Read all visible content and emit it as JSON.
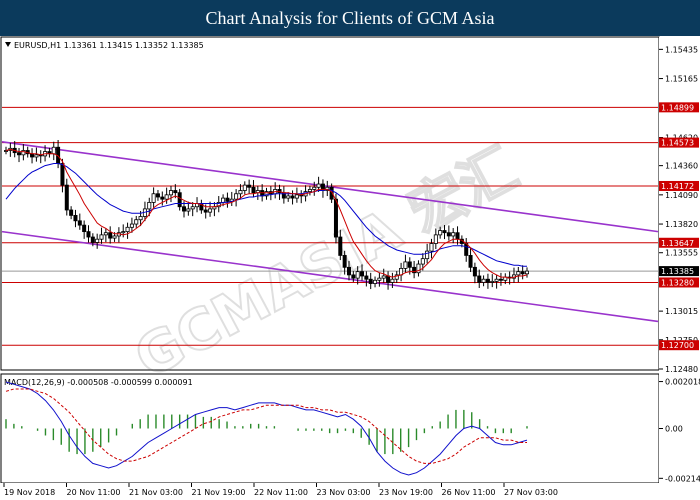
{
  "header": {
    "title": "Chart Analysis for Clients of GCM Asia"
  },
  "colors": {
    "banner": "#0b3a5c",
    "candle_up": "#000000",
    "candle_down": "#000000",
    "ma_fast": "#cc0000",
    "ma_slow": "#0000cc",
    "horizontal_level": "#cc0000",
    "channel": "#9933cc",
    "macd_hist_color": "#2a8a2a",
    "macd_line": "#1111cc",
    "signal_line": "#cc0000",
    "label_bg": "#cc0000",
    "current_price_bg": "#000000"
  },
  "chart_data": [
    {
      "type": "candlestick",
      "symbol_info": "EURUSD,H1  1.13361 1.13415 1.13352 1.13385",
      "ylim": [
        1.1248,
        1.1554
      ],
      "y_ticks": [
        "1.15435",
        "1.15165",
        "1.14620",
        "1.14360",
        "1.14090",
        "1.13820",
        "1.13555",
        "1.13015",
        "1.12750",
        "1.12480"
      ],
      "x_labels": [
        "19 Nov 2018",
        "20 Nov 11:00",
        "21 Nov 03:00",
        "21 Nov 19:00",
        "22 Nov 11:00",
        "23 Nov 03:00",
        "23 Nov 19:00",
        "26 Nov 11:00",
        "27 Nov 03:00"
      ],
      "horizontal_levels": [
        {
          "value": 1.14899,
          "label": "1.14899"
        },
        {
          "value": 1.14573,
          "label": "1.14573"
        },
        {
          "value": 1.14172,
          "label": "1.14172"
        },
        {
          "value": 1.13647,
          "label": "1.13647"
        },
        {
          "value": 1.1328,
          "label": "1.13280"
        },
        {
          "value": 1.127,
          "label": "1.12700"
        }
      ],
      "current_price": {
        "value": 1.13385,
        "label": "1.13385"
      },
      "channel_upper": [
        [
          0,
          1.1458
        ],
        [
          1,
          1.1375
        ]
      ],
      "channel_lower": [
        [
          0,
          1.1375
        ],
        [
          1,
          1.1292
        ]
      ],
      "close": [
        1.145,
        1.1452,
        1.1448,
        1.1446,
        1.145,
        1.1447,
        1.1444,
        1.1446,
        1.1445,
        1.1449,
        1.1447,
        1.1453,
        1.1438,
        1.1418,
        1.1395,
        1.139,
        1.1385,
        1.1381,
        1.1375,
        1.137,
        1.1365,
        1.1368,
        1.1372,
        1.1374,
        1.1369,
        1.1371,
        1.1374,
        1.1375,
        1.1379,
        1.1382,
        1.1386,
        1.1389,
        1.1396,
        1.1402,
        1.141,
        1.1407,
        1.1405,
        1.1409,
        1.1413,
        1.1411,
        1.1398,
        1.1394,
        1.1396,
        1.1398,
        1.1401,
        1.1395,
        1.1393,
        1.1396,
        1.1398,
        1.1402,
        1.1406,
        1.1403,
        1.1405,
        1.141,
        1.1413,
        1.1418,
        1.1416,
        1.1411,
        1.1413,
        1.1408,
        1.1412,
        1.141,
        1.1414,
        1.1411,
        1.1406,
        1.1408,
        1.1406,
        1.1409,
        1.1408,
        1.1412,
        1.1414,
        1.1416,
        1.1419,
        1.1413,
        1.1416,
        1.1405,
        1.137,
        1.1353,
        1.1342,
        1.1335,
        1.1332,
        1.1338,
        1.1334,
        1.1331,
        1.1327,
        1.133,
        1.1332,
        1.1334,
        1.1328,
        1.1331,
        1.1335,
        1.1341,
        1.1347,
        1.1342,
        1.1337,
        1.1345,
        1.135,
        1.1357,
        1.1364,
        1.1372,
        1.1376,
        1.1374,
        1.1371,
        1.1374,
        1.1368,
        1.1364,
        1.1353,
        1.1342,
        1.1334,
        1.1328,
        1.1331,
        1.1328,
        1.1329,
        1.1331,
        1.133,
        1.1333,
        1.1332,
        1.1335,
        1.1338,
        1.1336,
        1.13385
      ],
      "ma_fast": [
        1.145,
        1.1451,
        1.145,
        1.1449,
        1.1449,
        1.1448,
        1.1447,
        1.1447,
        1.1446,
        1.1447,
        1.1447,
        1.1447,
        1.1445,
        1.144,
        1.143,
        1.1423,
        1.1416,
        1.1409,
        1.1401,
        1.1395,
        1.1389,
        1.1383,
        1.138,
        1.1378,
        1.1375,
        1.1373,
        1.1373,
        1.1372,
        1.1373,
        1.1375,
        1.1378,
        1.1381,
        1.1386,
        1.1391,
        1.1397,
        1.14,
        1.1402,
        1.1404,
        1.1406,
        1.1408,
        1.1406,
        1.1404,
        1.1402,
        1.1401,
        1.1401,
        1.14,
        1.1398,
        1.1398,
        1.1398,
        1.1399,
        1.14,
        1.1401,
        1.1402,
        1.1404,
        1.1406,
        1.1409,
        1.141,
        1.141,
        1.1411,
        1.1411,
        1.1411,
        1.1411,
        1.1412,
        1.1412,
        1.1411,
        1.1411,
        1.141,
        1.141,
        1.1409,
        1.141,
        1.1411,
        1.1412,
        1.1414,
        1.1414,
        1.1414,
        1.1412,
        1.1404,
        1.1395,
        1.1385,
        1.1375,
        1.1366,
        1.136,
        1.1354,
        1.1348,
        1.1343,
        1.1339,
        1.1337,
        1.1336,
        1.1334,
        1.1333,
        1.1334,
        1.1335,
        1.1337,
        1.1338,
        1.1338,
        1.1339,
        1.1341,
        1.1345,
        1.1349,
        1.1355,
        1.136,
        1.1364,
        1.1366,
        1.1368,
        1.1368,
        1.1367,
        1.1364,
        1.136,
        1.1355,
        1.1349,
        1.1344,
        1.134,
        1.1337,
        1.1335,
        1.1333,
        1.1333,
        1.1332,
        1.1333,
        1.1334,
        1.1334,
        1.1335
      ],
      "ma_slow": [
        1.1405,
        1.141,
        1.1415,
        1.1419,
        1.1423,
        1.1427,
        1.143,
        1.1432,
        1.1434,
        1.1436,
        1.1437,
        1.1438,
        1.1438,
        1.1437,
        1.1435,
        1.1432,
        1.1429,
        1.1425,
        1.1421,
        1.1417,
        1.1413,
        1.1409,
        1.1406,
        1.1403,
        1.14,
        1.1398,
        1.1396,
        1.1394,
        1.1393,
        1.1392,
        1.1392,
        1.1392,
        1.1393,
        1.1394,
        1.1396,
        1.1397,
        1.1398,
        1.1399,
        1.14,
        1.1401,
        1.1401,
        1.1401,
        1.1401,
        1.1401,
        1.1401,
        1.1401,
        1.1401,
        1.1401,
        1.1401,
        1.1401,
        1.1402,
        1.1402,
        1.1403,
        1.1404,
        1.1405,
        1.1406,
        1.1407,
        1.1407,
        1.1408,
        1.1408,
        1.1409,
        1.1409,
        1.141,
        1.141,
        1.141,
        1.141,
        1.141,
        1.141,
        1.141,
        1.1411,
        1.1411,
        1.1412,
        1.1413,
        1.1413,
        1.1414,
        1.1413,
        1.1411,
        1.1408,
        1.1404,
        1.1399,
        1.1394,
        1.1389,
        1.1384,
        1.1379,
        1.1375,
        1.1371,
        1.1368,
        1.1365,
        1.1362,
        1.136,
        1.1358,
        1.1357,
        1.1356,
        1.1355,
        1.1354,
        1.1354,
        1.1354,
        1.1355,
        1.1356,
        1.1357,
        1.1359,
        1.136,
        1.1361,
        1.1362,
        1.1362,
        1.1362,
        1.1361,
        1.136,
        1.1358,
        1.1356,
        1.1354,
        1.1352,
        1.135,
        1.1348,
        1.1347,
        1.1346,
        1.1345,
        1.1344,
        1.1344,
        1.1343,
        1.1343
      ]
    },
    {
      "type": "macd",
      "title": "MACD(12,26,9) -0.000508 -0.000599 0.000091",
      "ylim": [
        -0.0023,
        0.0023
      ],
      "y_ticks": [
        "0.002018",
        "0.00",
        "-0.002142"
      ],
      "macd": [
        0.002,
        0.0019,
        0.0018,
        0.0017,
        0.0015,
        0.0012,
        0.0008,
        0.0003,
        -0.0003,
        -0.0008,
        -0.0012,
        -0.0015,
        -0.0016,
        -0.0017,
        -0.0016,
        -0.0014,
        -0.0012,
        -0.0009,
        -0.0006,
        -0.0004,
        -0.0002,
        0.0,
        0.0002,
        0.0004,
        0.0006,
        0.0007,
        0.0008,
        0.0009,
        0.0009,
        0.0008,
        0.0009,
        0.001,
        0.0011,
        0.0011,
        0.0011,
        0.001,
        0.001,
        0.0009,
        0.0008,
        0.0008,
        0.0007,
        0.0006,
        0.0005,
        0.0006,
        0.0004,
        0.0001,
        -0.0004,
        -0.001,
        -0.0014,
        -0.0017,
        -0.0019,
        -0.002,
        -0.0019,
        -0.0017,
        -0.0014,
        -0.0011,
        -0.0007,
        -0.0003,
        0.0,
        0.0001,
        0.0,
        -0.0003,
        -0.0006,
        -0.0007,
        -0.0007,
        -0.0006,
        -0.0005
      ],
      "signal": [
        0.0016,
        0.0017,
        0.0017,
        0.0017,
        0.0016,
        0.0015,
        0.0013,
        0.001,
        0.0007,
        0.0003,
        -0.0001,
        -0.0005,
        -0.0008,
        -0.0011,
        -0.0013,
        -0.0014,
        -0.0014,
        -0.0013,
        -0.0012,
        -0.001,
        -0.0008,
        -0.0006,
        -0.0004,
        -0.0002,
        0.0,
        0.0002,
        0.0003,
        0.0005,
        0.0006,
        0.0007,
        0.0008,
        0.0008,
        0.0009,
        0.001,
        0.001,
        0.001,
        0.001,
        0.001,
        0.0009,
        0.0009,
        0.0008,
        0.0008,
        0.0007,
        0.0007,
        0.0006,
        0.0005,
        0.0003,
        0.0,
        -0.0003,
        -0.0006,
        -0.0009,
        -0.0012,
        -0.0014,
        -0.0015,
        -0.0015,
        -0.0014,
        -0.0013,
        -0.0011,
        -0.0008,
        -0.0006,
        -0.0004,
        -0.0004,
        -0.0004,
        -0.0005,
        -0.0005,
        -0.0006,
        -0.0006
      ]
    }
  ]
}
